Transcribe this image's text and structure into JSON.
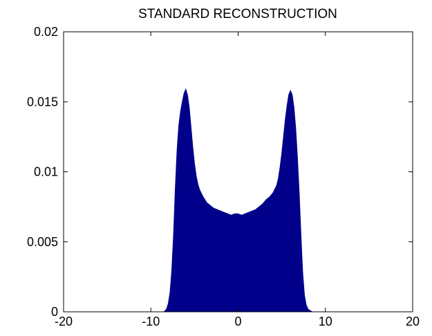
{
  "chart_data": {
    "type": "area",
    "title": "STANDARD RECONSTRUCTION",
    "xlabel": "",
    "ylabel": "",
    "xlim": [
      -20,
      20
    ],
    "ylim": [
      0,
      0.02
    ],
    "x_ticks": [
      -20,
      -10,
      0,
      10,
      20
    ],
    "y_ticks": [
      0,
      0.005,
      0.01,
      0.015,
      0.02
    ],
    "x_tick_labels": [
      "-20",
      "-10",
      "0",
      "10",
      "20"
    ],
    "y_tick_labels": [
      "0",
      "0.005",
      "0.01",
      "0.015",
      "0.02"
    ],
    "grid": false,
    "legend": "none",
    "fill_color": "#00008b",
    "series": [
      {
        "x": [
          -8.5,
          -8.2,
          -8.0,
          -7.8,
          -7.6,
          -7.4,
          -7.2,
          -7.0,
          -6.8,
          -6.6,
          -6.4,
          -6.2,
          -6.0,
          -5.8,
          -5.6,
          -5.4,
          -5.2,
          -5.0,
          -4.8,
          -4.6,
          -4.4,
          -4.0,
          -3.6,
          -3.2,
          -2.8,
          -2.4,
          -2.0,
          -1.6,
          -1.2,
          -0.8,
          -0.4,
          0.0,
          0.4,
          0.8,
          1.2,
          1.6,
          2.0,
          2.4,
          2.8,
          3.2,
          3.6,
          4.0,
          4.4,
          4.6,
          4.8,
          5.0,
          5.2,
          5.4,
          5.6,
          5.8,
          6.0,
          6.2,
          6.4,
          6.6,
          6.8,
          7.0,
          7.2,
          7.4,
          7.6,
          7.8,
          8.0,
          8.2,
          8.5
        ],
        "y": [
          0.0,
          0.0002,
          0.0006,
          0.0014,
          0.003,
          0.0055,
          0.0088,
          0.0115,
          0.0133,
          0.0143,
          0.015,
          0.0156,
          0.0159,
          0.0155,
          0.0146,
          0.0132,
          0.0118,
          0.0106,
          0.0097,
          0.0091,
          0.0087,
          0.0082,
          0.0078,
          0.0076,
          0.0074,
          0.0073,
          0.0072,
          0.0071,
          0.007,
          0.0069,
          0.007,
          0.007,
          0.0069,
          0.007,
          0.0071,
          0.0072,
          0.0073,
          0.0075,
          0.0077,
          0.008,
          0.0082,
          0.0085,
          0.009,
          0.0095,
          0.0103,
          0.0113,
          0.0125,
          0.0137,
          0.0147,
          0.0155,
          0.0158,
          0.0155,
          0.0146,
          0.0131,
          0.011,
          0.0085,
          0.0055,
          0.0028,
          0.0012,
          0.0005,
          0.0002,
          0.0001,
          0.0
        ]
      }
    ]
  }
}
